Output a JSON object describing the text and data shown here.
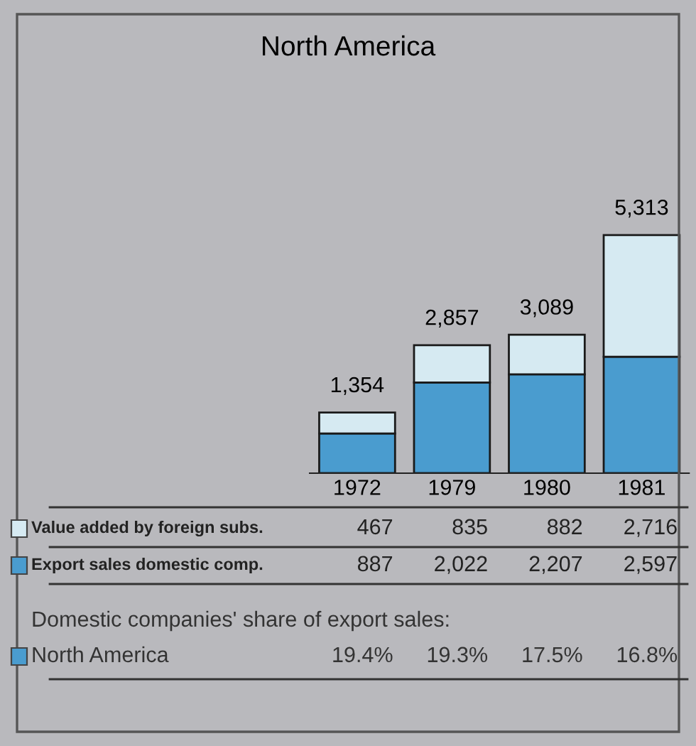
{
  "chart_data": {
    "type": "bar",
    "title": "North America",
    "stacked": true,
    "legend": "bottom left",
    "categories": [
      "1972",
      "1979",
      "1980",
      "1981"
    ],
    "series": [
      {
        "name": "Export sales domestic comp.",
        "color": "#4a9ccf",
        "values": [
          887,
          2022,
          2207,
          2597
        ],
        "value_labels": [
          "887",
          "2,022",
          "2,207",
          "2,597"
        ]
      },
      {
        "name": "Value added by foreign subs.",
        "color": "#d6eaf2",
        "values": [
          467,
          835,
          882,
          2716
        ],
        "value_labels": [
          "467",
          "835",
          "882",
          "2,716"
        ]
      }
    ],
    "totals": [
      "1,354",
      "2,857",
      "3,089",
      "5,313"
    ],
    "annotations": [
      "Domestic companies' share of export sales:",
      "North America",
      "19.4%",
      "19.3%",
      "17.5%",
      "16.8%"
    ]
  }
}
